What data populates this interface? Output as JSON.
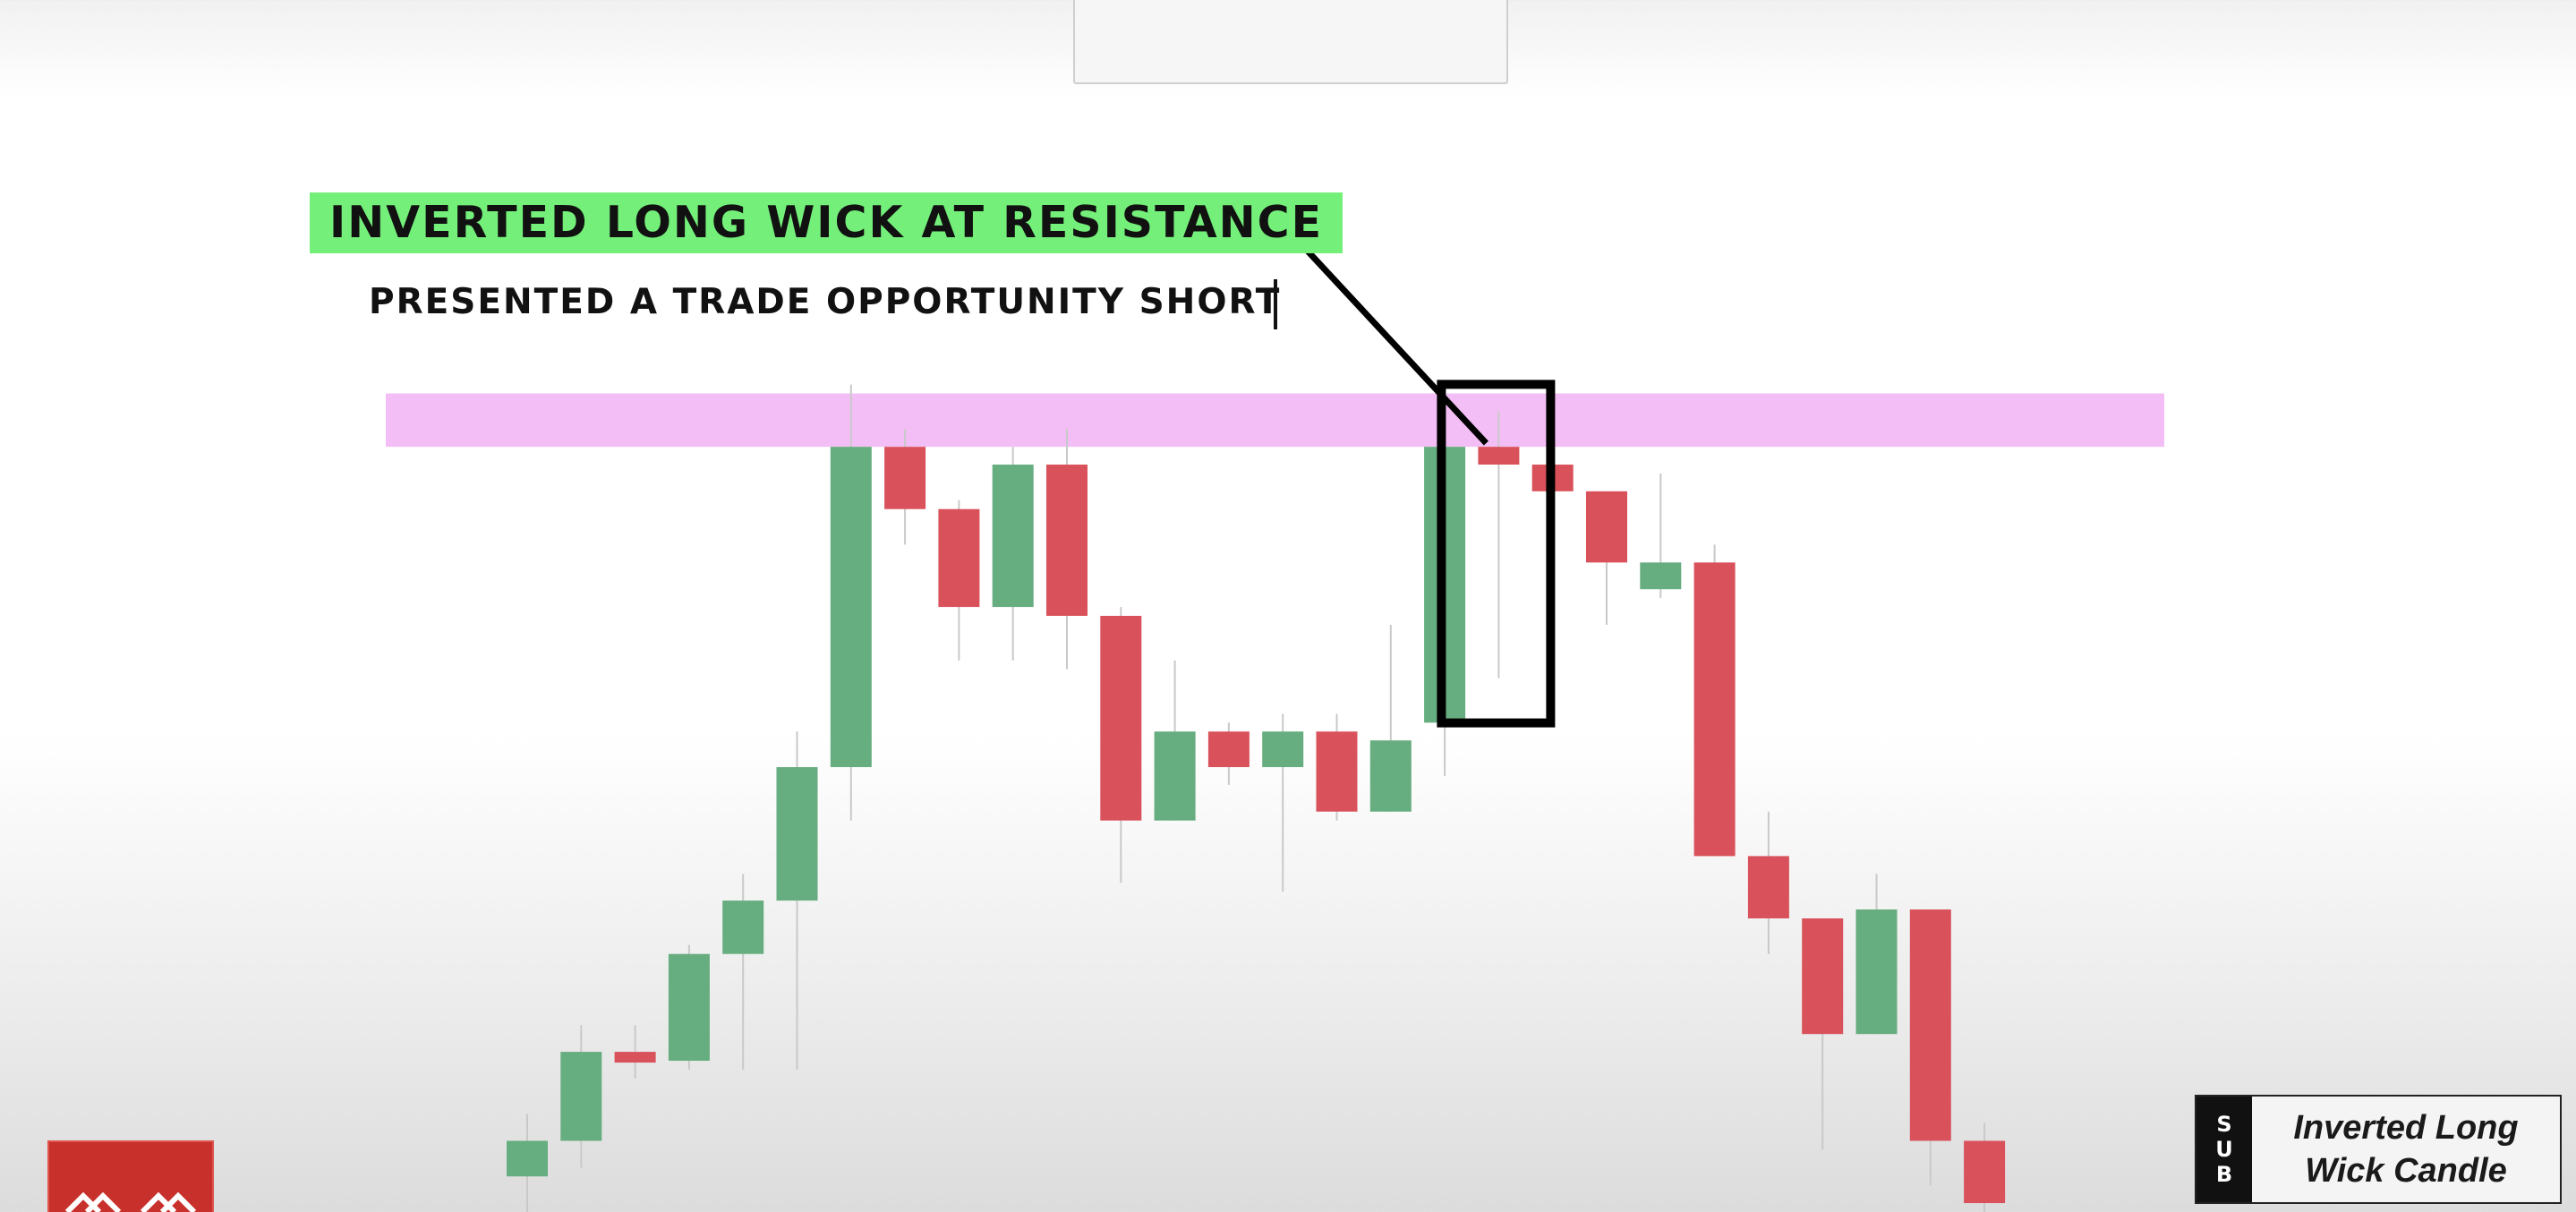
{
  "annotations": {
    "title": "INVERTED LONG WICK AT RESISTANCE",
    "subtitle": "PRESENTED A TRADE OPPORTUNITY SHORT"
  },
  "badge": {
    "side_letters": [
      "S",
      "U",
      "B"
    ],
    "line1": "Inverted Long",
    "line2": "Wick Candle"
  },
  "colors": {
    "bullish": "#66ad7f",
    "bearish": "#d9525b",
    "resistance_zone": "#f3bef5",
    "highlight_label": "#74f07a",
    "logo": "#c8312b"
  },
  "icons": {
    "logo": "red-chevron-logo"
  },
  "chart_data": {
    "type": "candlestick",
    "title": "",
    "xlabel": "",
    "ylabel": "",
    "price_scale": "unlabeled (relative units, higher = higher price)",
    "ylim": [
      0,
      100
    ],
    "resistance_zone": {
      "low": 86,
      "high": 92
    },
    "highlighted_candle_index": 18,
    "candles": [
      {
        "open": 4,
        "close": 8,
        "high": 11,
        "low": 0
      },
      {
        "open": 8,
        "close": 18,
        "high": 21,
        "low": 5
      },
      {
        "open": 18,
        "close": 17,
        "high": 21,
        "low": 15
      },
      {
        "open": 17,
        "close": 29,
        "high": 30,
        "low": 16
      },
      {
        "open": 29,
        "close": 35,
        "high": 38,
        "low": 16
      },
      {
        "open": 35,
        "close": 50,
        "high": 54,
        "low": 16
      },
      {
        "open": 50,
        "close": 86,
        "high": 93,
        "low": 44
      },
      {
        "open": 86,
        "close": 79,
        "high": 88,
        "low": 75
      },
      {
        "open": 79,
        "close": 68,
        "high": 80,
        "low": 62
      },
      {
        "open": 68,
        "close": 84,
        "high": 86,
        "low": 62
      },
      {
        "open": 84,
        "close": 67,
        "high": 88,
        "low": 61
      },
      {
        "open": 67,
        "close": 44,
        "high": 68,
        "low": 37
      },
      {
        "open": 44,
        "close": 54,
        "high": 62,
        "low": 44
      },
      {
        "open": 54,
        "close": 50,
        "high": 55,
        "low": 48
      },
      {
        "open": 50,
        "close": 54,
        "high": 56,
        "low": 36
      },
      {
        "open": 54,
        "close": 45,
        "high": 56,
        "low": 44
      },
      {
        "open": 45,
        "close": 53,
        "high": 66,
        "low": 45
      },
      {
        "open": 55,
        "close": 86,
        "high": 90,
        "low": 49
      },
      {
        "open": 86,
        "close": 84,
        "high": 90,
        "low": 60
      },
      {
        "open": 84,
        "close": 81,
        "high": 85,
        "low": 79
      },
      {
        "open": 81,
        "close": 73,
        "high": 81,
        "low": 66
      },
      {
        "open": 70,
        "close": 73,
        "high": 83,
        "low": 69
      },
      {
        "open": 73,
        "close": 40,
        "high": 75,
        "low": 40
      },
      {
        "open": 40,
        "close": 33,
        "high": 45,
        "low": 29
      },
      {
        "open": 33,
        "close": 20,
        "high": 33,
        "low": 7
      },
      {
        "open": 20,
        "close": 34,
        "high": 38,
        "low": 20
      },
      {
        "open": 34,
        "close": 8,
        "high": 34,
        "low": 3
      },
      {
        "open": 8,
        "close": 1,
        "high": 10,
        "low": -1
      }
    ]
  }
}
